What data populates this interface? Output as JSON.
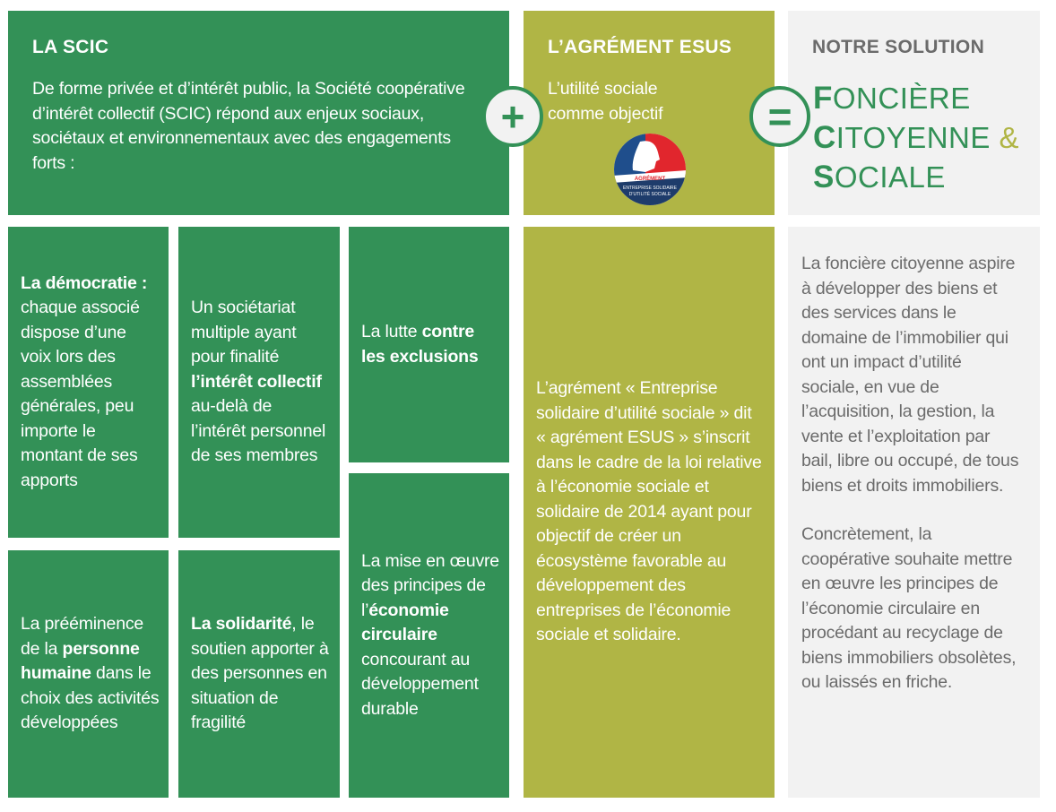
{
  "scic": {
    "title": "LA SCIC",
    "text": "De forme privée et d’intérêt public, la Société coopérative d’intérêt collectif (SCIC) répond aux enjeux sociaux, sociétaux et environnementaux avec des engagements forts :"
  },
  "esus": {
    "title": "L’AGRÉMENT ESUS",
    "text": "L’utilité sociale comme objectif",
    "logo": {
      "top": "AGRÉMENT",
      "bottom": "ENTREPRISE SOLIDAIRE D’UTILITÉ SOCIALE"
    },
    "body": "L’agrément « Entreprise solidaire d’utilité sociale » dit « agrément ESUS » s’inscrit dans le cadre de la loi relative à l’économie sociale et solidaire de 2014 ayant pour objectif de créer un écosystème favorable au développement des entreprises de l’économie sociale et solidaire."
  },
  "solution": {
    "title": "NOTRE SOLUTION",
    "line1": {
      "initial": "F",
      "rest": "ONCIÈRE"
    },
    "line2": {
      "initial": "C",
      "rest": "ITOYENNE",
      "amp": "&"
    },
    "line3": {
      "initial": "S",
      "rest": "OCIALE"
    },
    "body1": "La foncière citoyenne aspire à développer des biens et des services dans le domaine de l’immobilier qui ont un impact d’utilité sociale, en vue de l’acquisition, la gestion, la vente et l’exploitation par bail, libre ou occupé, de tous biens et droits immobiliers.",
    "body2": "Concrètement, la coopérative souhaite mettre en œuvre les principes de l’économie circulaire en procédant au recyclage de biens immobiliers obsolètes, ou laissés en friche."
  },
  "operators": {
    "plus": "+",
    "equals": "="
  },
  "cards": [
    {
      "b1": "La démocratie :",
      "t1": " chaque associé dispose d’une voix lors des assemblées générales, peu importe le montant de ses apports"
    },
    {
      "t1": "Un sociétariat multiple ayant pour finalité ",
      "b1": "l’intérêt collectif",
      "t2": " au-delà de l’intérêt personnel de ses membres"
    },
    {
      "t1": "La lutte ",
      "b1": "contre les exclusions"
    },
    {
      "t1": "La prééminence de la ",
      "b1": "personne humaine",
      "t2": " dans le choix des activités développées"
    },
    {
      "b1": "La solidarité",
      "t1": ", le soutien apporter à des personnes en situation de fragilité"
    },
    {
      "t1": "La mise en œuvre des principes de l’",
      "b1": "économie circulaire",
      "t2": " concourant au développement durable"
    }
  ],
  "colors": {
    "green": "#339157",
    "olive": "#b0b545",
    "grey": "#f2f2f2",
    "text_grey": "#6b6b6b"
  }
}
